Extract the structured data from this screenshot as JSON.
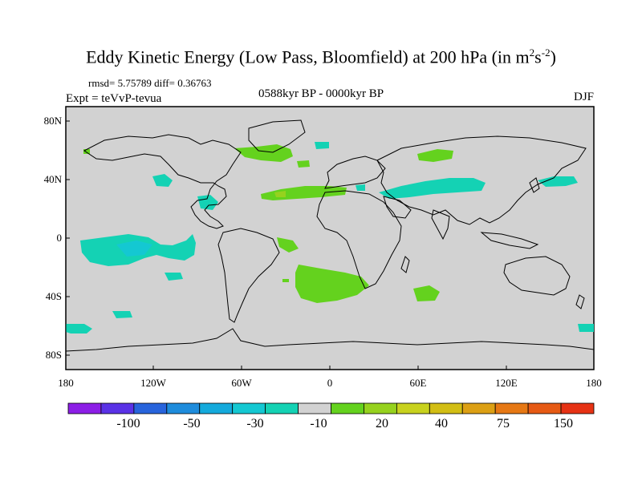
{
  "title": "Eddy Kinetic Energy (Low Pass, Bloomfield) at 200 hPa (in m",
  "title_sup1": "2",
  "title_mid": "s",
  "title_sup2": "-2",
  "title_end": ")",
  "stats": "rmsd= 5.75789 diff= 0.36763",
  "expt": "Expt = teVvP-tevua",
  "period": "0588kyr BP - 0000kyr BP",
  "season": "DJF",
  "lat_labels": [
    "80N",
    "40N",
    "0",
    "40S",
    "80S"
  ],
  "lon_labels": [
    "180",
    "120W",
    "60W",
    "0",
    "60E",
    "120E",
    "180"
  ],
  "colorbar": {
    "colors": [
      "#8c1ee6",
      "#5a32e6",
      "#2864dc",
      "#1e8cdc",
      "#14aadc",
      "#14c8d2",
      "#14d2b4",
      "#d2d2d2",
      "#64d21e",
      "#96d21e",
      "#c8d21e",
      "#d2be14",
      "#dca014",
      "#e67814",
      "#e65a14",
      "#e63214"
    ],
    "labels": [
      "-100",
      "-50",
      "-30",
      "-10",
      "20",
      "40",
      "75",
      "150"
    ]
  },
  "colors": {
    "background_land_ocean": "#d2d2d2",
    "anomaly_positive": "#64d21e",
    "anomaly_negative": "#14d2b4",
    "anomaly_negative_strong": "#14c8d2",
    "coast": "#000000"
  }
}
